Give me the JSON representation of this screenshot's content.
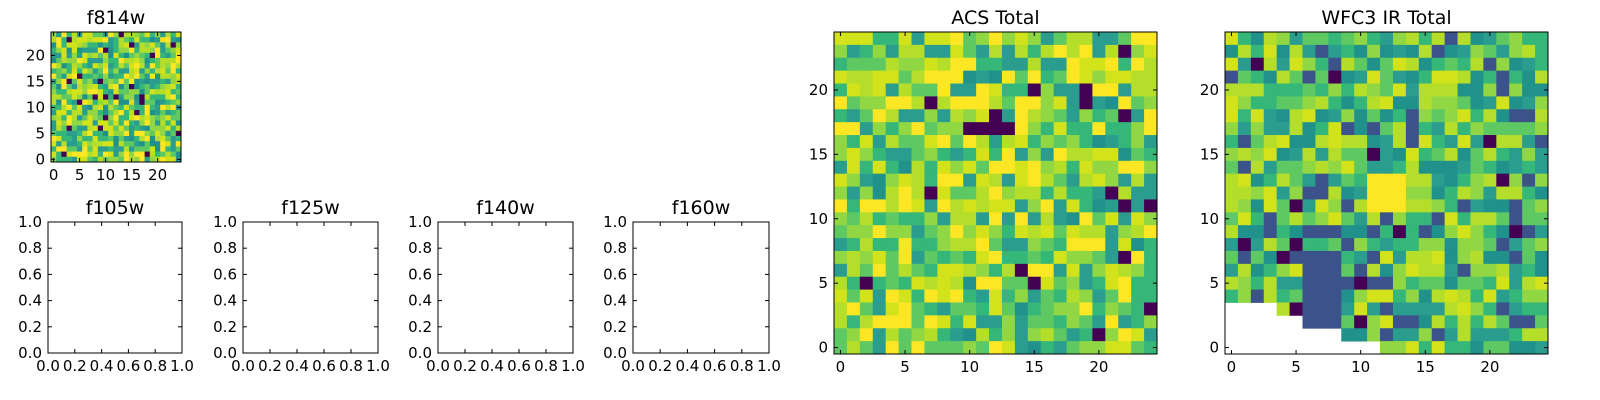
{
  "chart_data": [
    {
      "type": "heatmap",
      "title": "f814w",
      "colormap": "viridis",
      "grid_size": 25,
      "xticks": [
        0,
        5,
        10,
        15,
        20
      ],
      "yticks": [
        0,
        5,
        10,
        15,
        20
      ],
      "xlim": [
        -0.5,
        24.5
      ],
      "ylim": [
        -0.5,
        24.5
      ]
    },
    {
      "type": "heatmap",
      "title": "f105w",
      "empty": true,
      "xticks": [
        "0.0",
        "0.2",
        "0.4",
        "0.6",
        "0.8",
        "1.0"
      ],
      "yticks": [
        "0.0",
        "0.2",
        "0.4",
        "0.6",
        "0.8",
        "1.0"
      ],
      "xlim": [
        0,
        1
      ],
      "ylim": [
        0,
        1
      ]
    },
    {
      "type": "heatmap",
      "title": "f125w",
      "empty": true,
      "xticks": [
        "0.0",
        "0.2",
        "0.4",
        "0.6",
        "0.8",
        "1.0"
      ],
      "yticks": [
        "0.0",
        "0.2",
        "0.4",
        "0.6",
        "0.8",
        "1.0"
      ],
      "xlim": [
        0,
        1
      ],
      "ylim": [
        0,
        1
      ]
    },
    {
      "type": "heatmap",
      "title": "f140w",
      "empty": true,
      "xticks": [
        "0.0",
        "0.2",
        "0.4",
        "0.6",
        "0.8",
        "1.0"
      ],
      "yticks": [
        "0.0",
        "0.2",
        "0.4",
        "0.6",
        "0.8",
        "1.0"
      ],
      "xlim": [
        0,
        1
      ],
      "ylim": [
        0,
        1
      ]
    },
    {
      "type": "heatmap",
      "title": "f160w",
      "empty": true,
      "xticks": [
        "0.0",
        "0.2",
        "0.4",
        "0.6",
        "0.8",
        "1.0"
      ],
      "yticks": [
        "0.0",
        "0.2",
        "0.4",
        "0.6",
        "0.8",
        "1.0"
      ],
      "xlim": [
        0,
        1
      ],
      "ylim": [
        0,
        1
      ]
    },
    {
      "type": "heatmap",
      "title": "ACS Total",
      "colormap": "viridis",
      "grid_size": 25,
      "xticks": [
        0,
        5,
        10,
        15,
        20
      ],
      "yticks": [
        0,
        5,
        10,
        15,
        20
      ],
      "xlim": [
        -0.5,
        24.5
      ],
      "ylim": [
        -0.5,
        24.5
      ]
    },
    {
      "type": "heatmap",
      "title": "WFC3 IR Total",
      "colormap": "viridis",
      "grid_size": 25,
      "xticks": [
        0,
        5,
        10,
        15,
        20
      ],
      "yticks": [
        0,
        5,
        10,
        15,
        20
      ],
      "xlim": [
        -0.5,
        24.5
      ],
      "ylim": [
        -0.5,
        24.5
      ],
      "masked_region": "lower-left corner (no data)"
    }
  ]
}
